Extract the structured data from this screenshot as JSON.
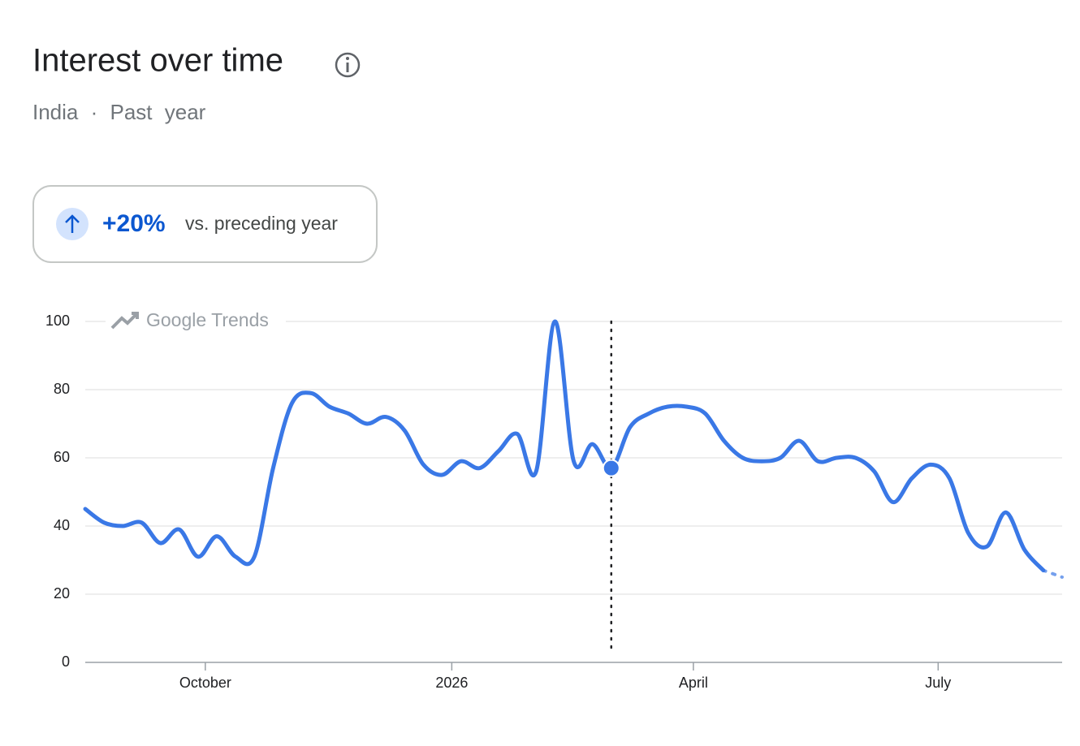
{
  "chart_data": {
    "type": "line",
    "title": "Interest over time",
    "subtitle": "India · Past year",
    "change_label": "+20%",
    "change_text": "vs. preceding year",
    "watermark": "Google Trends",
    "x": [
      0,
      1,
      2,
      3,
      4,
      5,
      6,
      7,
      8,
      9,
      10,
      11,
      12,
      13,
      14,
      15,
      16,
      17,
      18,
      19,
      20,
      21,
      22,
      23,
      24,
      25,
      26,
      27,
      28,
      29,
      30,
      31,
      32,
      33,
      34,
      35,
      36,
      37,
      38,
      39,
      40,
      41,
      42,
      43,
      44,
      45,
      46,
      47,
      48,
      49,
      50,
      51,
      52
    ],
    "series": [
      {
        "name": "Interest",
        "color": "#3a78e6",
        "values": [
          45,
          41,
          40,
          41,
          35,
          39,
          31,
          37,
          31,
          31,
          57,
          76,
          79,
          75,
          73,
          70,
          72,
          68,
          58,
          55,
          59,
          57,
          62,
          67,
          56,
          100,
          59,
          64,
          57,
          69,
          73,
          75,
          75,
          73,
          65,
          60,
          59,
          60,
          65,
          59,
          60,
          60,
          56,
          47,
          54,
          58,
          54,
          38,
          34,
          44,
          33,
          27,
          25
        ]
      }
    ],
    "xlim": [
      0,
      52
    ],
    "xticks": [
      {
        "value": 6.39,
        "label": "October"
      },
      {
        "value": 19.51,
        "label": "2026"
      },
      {
        "value": 32.37,
        "label": "April"
      },
      {
        "value": 45.4,
        "label": "July"
      }
    ],
    "ylim": [
      0,
      100
    ],
    "yticks": [
      0,
      20,
      40,
      60,
      80,
      100
    ],
    "grid": true
  }
}
